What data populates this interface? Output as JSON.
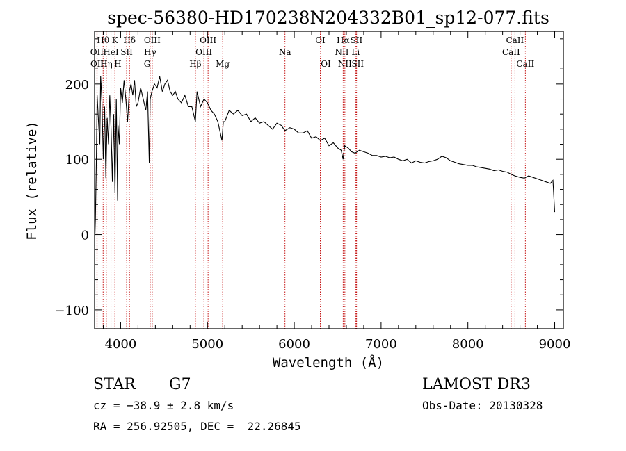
{
  "chart_data": {
    "type": "line",
    "title": "spec-56380-HD170238N204332B01_sp12-077.fits",
    "xlabel": "Wavelength (Å)",
    "ylabel": "Flux (relative)",
    "xlim": [
      3700,
      9100
    ],
    "ylim": [
      -125,
      270
    ],
    "xticks": [
      4000,
      5000,
      6000,
      7000,
      8000,
      9000
    ],
    "xtick_labels": [
      "4000",
      "5000",
      "6000",
      "7000",
      "8000",
      "9000"
    ],
    "yticks": [
      -100,
      0,
      100,
      200
    ],
    "ytick_labels": [
      "−100",
      "0",
      "100",
      "200"
    ],
    "grid": false,
    "series": [
      {
        "name": "spectrum",
        "x": [
          3700,
          3710,
          3720,
          3730,
          3745,
          3760,
          3770,
          3785,
          3800,
          3815,
          3830,
          3845,
          3860,
          3875,
          3890,
          3905,
          3920,
          3935,
          3950,
          3965,
          3970,
          3985,
          4000,
          4020,
          4040,
          4060,
          4080,
          4100,
          4120,
          4140,
          4160,
          4180,
          4200,
          4230,
          4260,
          4290,
          4310,
          4330,
          4340,
          4360,
          4390,
          4420,
          4450,
          4480,
          4510,
          4540,
          4570,
          4600,
          4630,
          4660,
          4700,
          4740,
          4780,
          4820,
          4861,
          4880,
          4920,
          4960,
          5000,
          5040,
          5080,
          5120,
          5167,
          5183,
          5200,
          5250,
          5300,
          5350,
          5400,
          5450,
          5500,
          5550,
          5600,
          5650,
          5700,
          5750,
          5800,
          5850,
          5893,
          5950,
          6000,
          6050,
          6100,
          6150,
          6200,
          6250,
          6300,
          6350,
          6400,
          6450,
          6500,
          6540,
          6563,
          6580,
          6620,
          6660,
          6700,
          6750,
          6800,
          6850,
          6900,
          6950,
          7000,
          7050,
          7100,
          7150,
          7200,
          7250,
          7300,
          7350,
          7400,
          7450,
          7500,
          7550,
          7600,
          7650,
          7700,
          7750,
          7800,
          7850,
          7900,
          7950,
          8000,
          8050,
          8100,
          8150,
          8200,
          8250,
          8300,
          8350,
          8400,
          8450,
          8500,
          8540,
          8600,
          8650,
          8700,
          8750,
          8800,
          8850,
          8900,
          8950,
          8980,
          9000
        ],
        "y": [
          -15,
          20,
          95,
          185,
          150,
          120,
          210,
          175,
          100,
          170,
          75,
          155,
          120,
          185,
          140,
          70,
          160,
          55,
          180,
          45,
          145,
          120,
          195,
          175,
          205,
          180,
          150,
          190,
          200,
          185,
          205,
          170,
          175,
          195,
          180,
          165,
          190,
          95,
          180,
          190,
          200,
          195,
          210,
          190,
          200,
          205,
          190,
          185,
          190,
          180,
          175,
          185,
          170,
          170,
          150,
          190,
          170,
          180,
          175,
          165,
          160,
          150,
          125,
          150,
          150,
          165,
          160,
          165,
          158,
          160,
          150,
          155,
          148,
          150,
          145,
          140,
          148,
          145,
          138,
          142,
          140,
          135,
          135,
          138,
          128,
          130,
          125,
          128,
          118,
          122,
          115,
          112,
          100,
          118,
          115,
          110,
          108,
          112,
          110,
          108,
          105,
          105,
          103,
          104,
          102,
          103,
          100,
          98,
          100,
          95,
          98,
          96,
          95,
          97,
          98,
          100,
          104,
          102,
          98,
          96,
          94,
          93,
          92,
          92,
          90,
          89,
          88,
          87,
          85,
          86,
          84,
          83,
          80,
          78,
          76,
          75,
          78,
          76,
          74,
          72,
          70,
          68,
          72,
          30
        ]
      }
    ],
    "line_markers": [
      {
        "label": "Hθ",
        "wavelength": 3798,
        "row": 0
      },
      {
        "label": "OII",
        "wavelength": 3727,
        "row": 1
      },
      {
        "label": "OII",
        "wavelength": 3729,
        "row": 2
      },
      {
        "label": "Hη",
        "wavelength": 3835,
        "row": 2
      },
      {
        "label": "HeI",
        "wavelength": 3889,
        "row": 1
      },
      {
        "label": "K",
        "wavelength": 3934,
        "row": 0
      },
      {
        "label": "H",
        "wavelength": 3968,
        "row": 2
      },
      {
        "label": "SII",
        "wavelength": 4069,
        "row": 1
      },
      {
        "label": "Hδ",
        "wavelength": 4102,
        "row": 0
      },
      {
        "label": "OIII",
        "wavelength": 4364,
        "row": 0
      },
      {
        "label": "Hγ",
        "wavelength": 4340,
        "row": 1
      },
      {
        "label": "G",
        "wavelength": 4305,
        "row": 2
      },
      {
        "label": "Hβ",
        "wavelength": 4861,
        "row": 2
      },
      {
        "label": "OIII",
        "wavelength": 5007,
        "row": 0
      },
      {
        "label": "OIII",
        "wavelength": 4959,
        "row": 1
      },
      {
        "label": "Mg",
        "wavelength": 5175,
        "row": 2
      },
      {
        "label": "Na",
        "wavelength": 5893,
        "row": 1
      },
      {
        "label": "OI",
        "wavelength": 6300,
        "row": 0
      },
      {
        "label": "OI",
        "wavelength": 6364,
        "row": 2
      },
      {
        "label": "Hα",
        "wavelength": 6563,
        "row": 0
      },
      {
        "label": "NII",
        "wavelength": 6548,
        "row": 1
      },
      {
        "label": "NII",
        "wavelength": 6583,
        "row": 2
      },
      {
        "label": "SII",
        "wavelength": 6716,
        "row": 0
      },
      {
        "label": "Li",
        "wavelength": 6707,
        "row": 1
      },
      {
        "label": "SII",
        "wavelength": 6731,
        "row": 2
      },
      {
        "label": "CaII",
        "wavelength": 8542,
        "row": 0
      },
      {
        "label": "CaII",
        "wavelength": 8498,
        "row": 1
      },
      {
        "label": "CaII",
        "wavelength": 8662,
        "row": 2
      }
    ]
  },
  "info": {
    "object_class": "STAR",
    "subclass": "G7",
    "survey": "LAMOST DR3",
    "redshift": "cz = −38.9 ± 2.8 km/s",
    "obs_date": "Obs-Date: 20130328",
    "coords": "RA = 256.92505, DEC =  22.26845"
  },
  "colors": {
    "axis": "#000000",
    "spectrum": "#000000",
    "marker": "#c00000"
  }
}
